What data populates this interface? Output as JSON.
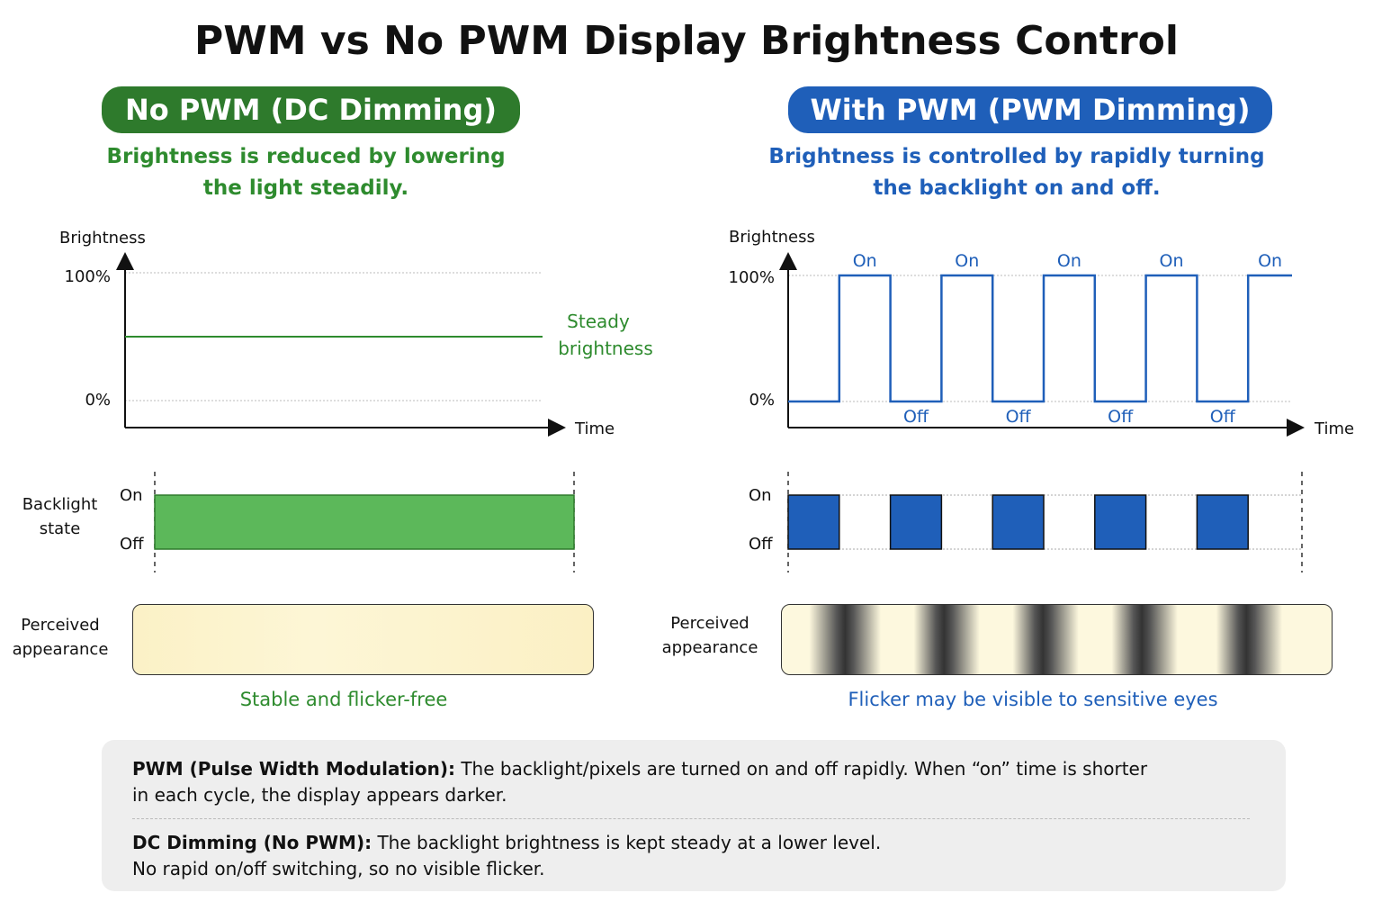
{
  "title": "PWM vs No PWM Display Brightness Control",
  "left": {
    "header": "No PWM (DC Dimming)",
    "subtitle_line1": "Brightness is reduced by lowering",
    "subtitle_line2": "the light steadily.",
    "chart_ylabel": "Brightness",
    "chart_y_max": "100%",
    "chart_y_min": "0%",
    "chart_xlabel": "Time",
    "line_label_1": "Steady",
    "line_label_2": "brightness",
    "backlight_label_1": "Backlight",
    "backlight_label_2": "state",
    "on": "On",
    "off": "Off",
    "perceived_1": "Perceived",
    "perceived_2": "appearance",
    "caption": "Stable and flicker-free",
    "color": "#2e8b2e"
  },
  "right": {
    "header": "With PWM (PWM Dimming)",
    "subtitle_line1": "Brightness is controlled by rapidly turning",
    "subtitle_line2": "the backlight on and off.",
    "chart_ylabel": "Brightness",
    "chart_y_max": "100%",
    "chart_y_min": "0%",
    "chart_xlabel": "Time",
    "on": "On",
    "off": "Off",
    "perceived_1": "Perceived",
    "perceived_2": "appearance",
    "caption": "Flicker may be visible to sensitive eyes",
    "color": "#1f5fb9"
  },
  "chart_data": [
    {
      "type": "line",
      "title": "No PWM (DC Dimming)",
      "ylabel": "Brightness",
      "xlabel": "Time",
      "y_ticks": [
        "0%",
        "100%"
      ],
      "series": [
        {
          "name": "Steady brightness",
          "values": [
            50,
            50
          ]
        }
      ]
    },
    {
      "type": "line",
      "title": "With PWM (PWM Dimming)",
      "ylabel": "Brightness",
      "xlabel": "Time",
      "y_ticks": [
        "0%",
        "100%"
      ],
      "pulse_states": [
        "Off",
        "On",
        "Off",
        "On",
        "Off",
        "On",
        "Off",
        "On",
        "Off",
        "On"
      ],
      "series": [
        {
          "values": [
            0,
            100,
            0,
            100,
            0,
            100,
            0,
            100,
            0,
            100
          ]
        }
      ]
    }
  ],
  "notes": {
    "pwm_term": "PWM (Pulse Width Modulation):",
    "pwm_text_1": " The backlight/pixels are turned on and off rapidly. When “on” time is shorter",
    "pwm_text_2": "in each cycle, the display appears darker.",
    "dc_term": "DC Dimming (No PWM):",
    "dc_text_1": " The backlight brightness is kept steady at a lower level.",
    "dc_text_2": "No rapid on/off switching, so no visible flicker."
  }
}
